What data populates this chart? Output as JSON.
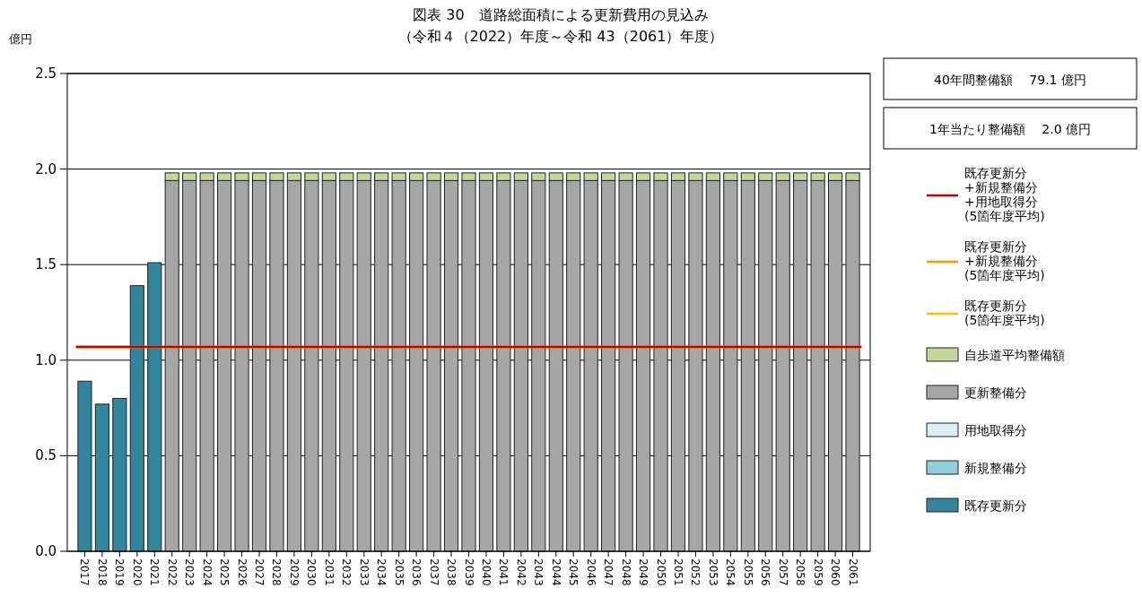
{
  "chart_data": {
    "type": "bar",
    "stacked": true,
    "title": "図表 30　道路総面積による更新費用の見込み",
    "subtitle": "（令和４（2022）年度～令和 43（2061）年度）",
    "ylabel": "億円",
    "categories": [
      "2017",
      "2018",
      "2019",
      "2020",
      "2021",
      "2022",
      "2023",
      "2024",
      "2025",
      "2026",
      "2027",
      "2028",
      "2029",
      "2030",
      "2031",
      "2032",
      "2033",
      "2034",
      "2035",
      "2036",
      "2037",
      "2038",
      "2039",
      "2040",
      "2041",
      "2042",
      "2043",
      "2044",
      "2045",
      "2046",
      "2047",
      "2048",
      "2049",
      "2050",
      "2051",
      "2052",
      "2053",
      "2054",
      "2055",
      "2056",
      "2057",
      "2058",
      "2059",
      "2060",
      "2061"
    ],
    "series": [
      {
        "name": "既存更新分",
        "color": "#31859c",
        "values": [
          0.89,
          0.77,
          0.8,
          1.39,
          1.51,
          0,
          0,
          0,
          0,
          0,
          0,
          0,
          0,
          0,
          0,
          0,
          0,
          0,
          0,
          0,
          0,
          0,
          0,
          0,
          0,
          0,
          0,
          0,
          0,
          0,
          0,
          0,
          0,
          0,
          0,
          0,
          0,
          0,
          0,
          0,
          0,
          0,
          0,
          0,
          0
        ]
      },
      {
        "name": "新規整備分",
        "color": "#92cddc",
        "values": [
          0,
          0,
          0,
          0,
          0,
          0,
          0,
          0,
          0,
          0,
          0,
          0,
          0,
          0,
          0,
          0,
          0,
          0,
          0,
          0,
          0,
          0,
          0,
          0,
          0,
          0,
          0,
          0,
          0,
          0,
          0,
          0,
          0,
          0,
          0,
          0,
          0,
          0,
          0,
          0,
          0,
          0,
          0,
          0,
          0
        ]
      },
      {
        "name": "用地取得分",
        "color": "#dbeef4",
        "values": [
          0,
          0,
          0,
          0,
          0,
          0,
          0,
          0,
          0,
          0,
          0,
          0,
          0,
          0,
          0,
          0,
          0,
          0,
          0,
          0,
          0,
          0,
          0,
          0,
          0,
          0,
          0,
          0,
          0,
          0,
          0,
          0,
          0,
          0,
          0,
          0,
          0,
          0,
          0,
          0,
          0,
          0,
          0,
          0,
          0
        ]
      },
      {
        "name": "更新整備分",
        "color": "#a6a6a6",
        "values": [
          0,
          0,
          0,
          0,
          0,
          1.94,
          1.94,
          1.94,
          1.94,
          1.94,
          1.94,
          1.94,
          1.94,
          1.94,
          1.94,
          1.94,
          1.94,
          1.94,
          1.94,
          1.94,
          1.94,
          1.94,
          1.94,
          1.94,
          1.94,
          1.94,
          1.94,
          1.94,
          1.94,
          1.94,
          1.94,
          1.94,
          1.94,
          1.94,
          1.94,
          1.94,
          1.94,
          1.94,
          1.94,
          1.94,
          1.94,
          1.94,
          1.94,
          1.94,
          1.94
        ]
      },
      {
        "name": "自歩道平均整備額",
        "color": "#c3d69b",
        "values": [
          0,
          0,
          0,
          0,
          0,
          0.04,
          0.04,
          0.04,
          0.04,
          0.04,
          0.04,
          0.04,
          0.04,
          0.04,
          0.04,
          0.04,
          0.04,
          0.04,
          0.04,
          0.04,
          0.04,
          0.04,
          0.04,
          0.04,
          0.04,
          0.04,
          0.04,
          0.04,
          0.04,
          0.04,
          0.04,
          0.04,
          0.04,
          0.04,
          0.04,
          0.04,
          0.04,
          0.04,
          0.04,
          0.04,
          0.04,
          0.04,
          0.04,
          0.04,
          0.04
        ]
      }
    ],
    "ref_lines": [
      {
        "axis": "y",
        "value": 1.07,
        "label": "既存更新分\n(5箇年度平均)",
        "color": "#ffc000"
      },
      {
        "axis": "y",
        "value": 1.07,
        "label": "既存更新分\n+新規整備分\n(5箇年度平均)",
        "color": "#ff9900"
      },
      {
        "axis": "y",
        "value": 1.07,
        "label": "既存更新分\n+新規整備分\n+用地取得分\n(5箇年度平均)",
        "color": "#c00000"
      }
    ],
    "annotations": [
      "40年間整備額　 79.1 億円",
      "1年当たり整備額　 2.0 億円"
    ],
    "ylim": [
      0,
      2.5
    ],
    "yticks": [
      {
        "value": 0,
        "label": "0.0"
      },
      {
        "value": 0.5,
        "label": "0.5"
      },
      {
        "value": 1,
        "label": "1.0"
      },
      {
        "value": 1.5,
        "label": "1.5"
      },
      {
        "value": 2,
        "label": "2.0"
      },
      {
        "value": 2.5,
        "label": "2.5"
      }
    ],
    "grid": "y",
    "legend": "right"
  }
}
